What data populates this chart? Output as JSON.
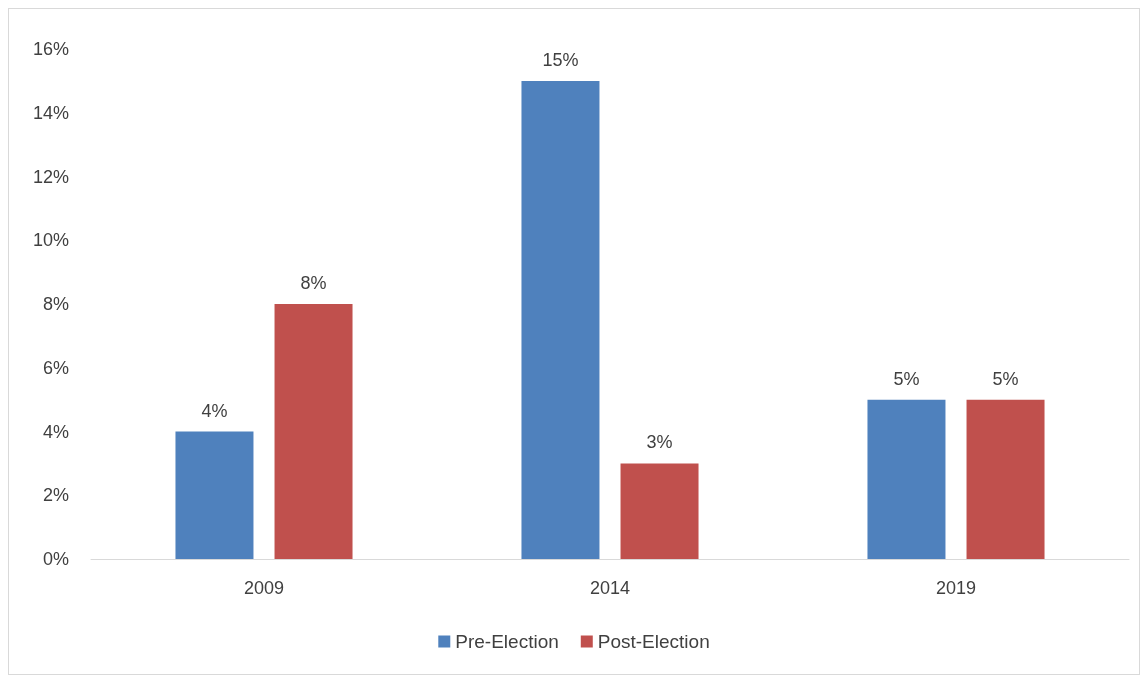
{
  "chart_data": {
    "type": "bar",
    "categories": [
      "2009",
      "2014",
      "2019"
    ],
    "series": [
      {
        "name": "Pre-Election",
        "color": "#4f81bd",
        "values": [
          4,
          15,
          5
        ],
        "value_labels": [
          "4%",
          "15%",
          "5%"
        ]
      },
      {
        "name": "Post-Election",
        "color": "#c0504d",
        "values": [
          8,
          3,
          5
        ],
        "value_labels": [
          "8%",
          "3%",
          "5%"
        ]
      }
    ],
    "ylim": [
      0,
      16
    ],
    "yticks": [
      {
        "value": 0,
        "label": "0%"
      },
      {
        "value": 2,
        "label": "2%"
      },
      {
        "value": 4,
        "label": "4%"
      },
      {
        "value": 6,
        "label": "6%"
      },
      {
        "value": 8,
        "label": "8%"
      },
      {
        "value": 10,
        "label": "10%"
      },
      {
        "value": 12,
        "label": "12%"
      },
      {
        "value": 14,
        "label": "14%"
      },
      {
        "value": 16,
        "label": "16%"
      }
    ],
    "grid": false,
    "legend": "bottom"
  }
}
